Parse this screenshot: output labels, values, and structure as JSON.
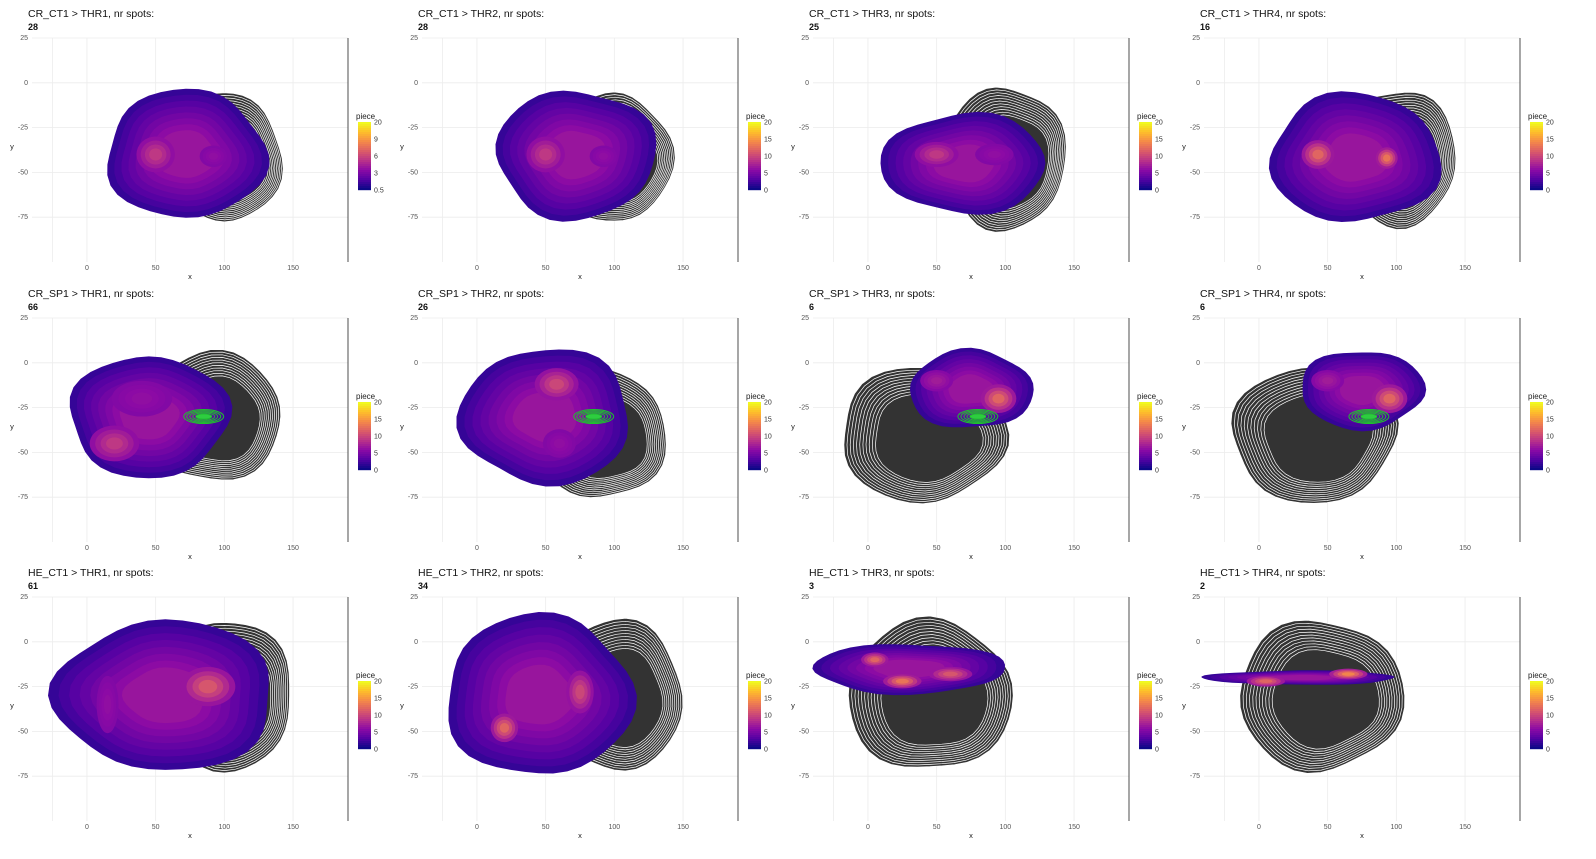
{
  "chart_data": [
    {
      "type": "contour",
      "title": "CR_CT1 > THR1, nr spots:",
      "count": "28",
      "xlabel": "x",
      "ylabel": "y",
      "xticks": [
        "0",
        "50",
        "100",
        "150"
      ],
      "yticks": [
        "25",
        "0",
        "-25",
        "-50",
        "-75"
      ],
      "legend_title": "piece",
      "legend_ticks": [
        "20",
        "9",
        "6",
        "3",
        "0.5"
      ],
      "grey": {
        "cx": 100,
        "cy": -42,
        "rx": 42,
        "ry": 36
      },
      "green": null,
      "density": {
        "cx": 72,
        "cy": -40,
        "rx": 58,
        "ry": 36
      },
      "hot": [
        {
          "x": 50,
          "y": -40,
          "rx": 14,
          "ry": 10,
          "level": 0.45
        },
        {
          "x": 92,
          "y": -41,
          "rx": 10,
          "ry": 6,
          "level": 0.3
        }
      ]
    },
    {
      "type": "contour",
      "title": "CR_CT1 > THR2, nr spots:",
      "count": "28",
      "xlabel": "x",
      "ylabel": "y",
      "xticks": [
        "0",
        "50",
        "100",
        "150"
      ],
      "yticks": [
        "25",
        "0",
        "-25",
        "-50",
        "-75"
      ],
      "legend_title": "piece",
      "legend_ticks": [
        "20",
        "15",
        "10",
        "5",
        "0"
      ],
      "grey": {
        "cx": 100,
        "cy": -42,
        "rx": 42,
        "ry": 36
      },
      "green": null,
      "density": {
        "cx": 72,
        "cy": -40,
        "rx": 58,
        "ry": 36
      },
      "hot": [
        {
          "x": 50,
          "y": -40,
          "rx": 14,
          "ry": 10,
          "level": 0.45
        },
        {
          "x": 92,
          "y": -41,
          "rx": 10,
          "ry": 6,
          "level": 0.3
        }
      ]
    },
    {
      "type": "contour",
      "title": "CR_CT1 > THR3, nr spots:",
      "count": "25",
      "xlabel": "x",
      "ylabel": "y",
      "xticks": [
        "0",
        "50",
        "100",
        "150"
      ],
      "yticks": [
        "25",
        "0",
        "-25",
        "-50",
        "-75"
      ],
      "legend_title": "piece",
      "legend_ticks": [
        "20",
        "15",
        "10",
        "5",
        "0"
      ],
      "grey": {
        "cx": 100,
        "cy": -42,
        "rx": 44,
        "ry": 40
      },
      "green": null,
      "density": {
        "cx": 70,
        "cy": -45,
        "rx": 60,
        "ry": 28
      },
      "hot": [
        {
          "x": 50,
          "y": -40,
          "rx": 16,
          "ry": 7,
          "level": 0.45
        },
        {
          "x": 92,
          "y": -40,
          "rx": 14,
          "ry": 6,
          "level": 0.3
        }
      ]
    },
    {
      "type": "contour",
      "title": "CR_CT1 > THR4, nr spots:",
      "count": "16",
      "xlabel": "x",
      "ylabel": "y",
      "xticks": [
        "0",
        "50",
        "100",
        "150"
      ],
      "yticks": [
        "25",
        "0",
        "-25",
        "-50",
        "-75"
      ],
      "legend_title": "piece",
      "legend_ticks": [
        "20",
        "15",
        "10",
        "5",
        "0"
      ],
      "grey": {
        "cx": 100,
        "cy": -42,
        "rx": 44,
        "ry": 38
      },
      "green": null,
      "density": {
        "cx": 70,
        "cy": -42,
        "rx": 62,
        "ry": 36
      },
      "hot": [
        {
          "x": 43,
          "y": -40,
          "rx": 12,
          "ry": 8,
          "level": 0.6
        },
        {
          "x": 93,
          "y": -42,
          "rx": 8,
          "ry": 6,
          "level": 0.65
        }
      ]
    },
    {
      "type": "contour",
      "title": "CR_SP1 > THR1, nr spots:",
      "count": "66",
      "xlabel": "x",
      "ylabel": "y",
      "xticks": [
        "0",
        "50",
        "100",
        "150"
      ],
      "yticks": [
        "25",
        "0",
        "-25",
        "-50",
        "-75"
      ],
      "legend_title": "piece",
      "legend_ticks": [
        "20",
        "15",
        "10",
        "5",
        "0"
      ],
      "grey": {
        "cx": 90,
        "cy": -30,
        "rx": 52,
        "ry": 36
      },
      "green": {
        "x": 85,
        "y": -30
      },
      "density": {
        "cx": 45,
        "cy": -30,
        "rx": 58,
        "ry": 34
      },
      "hot": [
        {
          "x": 20,
          "y": -45,
          "rx": 18,
          "ry": 10,
          "level": 0.45
        },
        {
          "x": 40,
          "y": -20,
          "rx": 22,
          "ry": 10,
          "level": 0.3
        }
      ]
    },
    {
      "type": "contour",
      "title": "CR_SP1 > THR2, nr spots:",
      "count": "26",
      "xlabel": "x",
      "ylabel": "y",
      "xticks": [
        "0",
        "50",
        "100",
        "150"
      ],
      "yticks": [
        "25",
        "0",
        "-25",
        "-50",
        "-75"
      ],
      "legend_title": "piece",
      "legend_ticks": [
        "20",
        "15",
        "10",
        "5",
        "0"
      ],
      "grey": {
        "cx": 90,
        "cy": -40,
        "rx": 48,
        "ry": 36
      },
      "green": {
        "x": 85,
        "y": -30
      },
      "density": {
        "cx": 50,
        "cy": -30,
        "rx": 62,
        "ry": 38
      },
      "hot": [
        {
          "x": 58,
          "y": -12,
          "rx": 16,
          "ry": 9,
          "level": 0.5
        },
        {
          "x": 60,
          "y": -45,
          "rx": 12,
          "ry": 8,
          "level": 0.3
        }
      ]
    },
    {
      "type": "contour",
      "title": "CR_SP1 > THR3, nr spots:",
      "count": "6",
      "xlabel": "x",
      "ylabel": "y",
      "xticks": [
        "0",
        "50",
        "100",
        "150"
      ],
      "yticks": [
        "25",
        "0",
        "-25",
        "-50",
        "-75"
      ],
      "legend_title": "piece",
      "legend_ticks": [
        "20",
        "15",
        "10",
        "5",
        "0"
      ],
      "grey": {
        "cx": 40,
        "cy": -40,
        "rx": 60,
        "ry": 38
      },
      "green": {
        "x": 80,
        "y": -30
      },
      "density": {
        "cx": 75,
        "cy": -15,
        "rx": 45,
        "ry": 22
      },
      "hot": [
        {
          "x": 95,
          "y": -20,
          "rx": 13,
          "ry": 8,
          "level": 0.6
        },
        {
          "x": 50,
          "y": -10,
          "rx": 12,
          "ry": 6,
          "level": 0.35
        }
      ]
    },
    {
      "type": "contour",
      "title": "CR_SP1 > THR4, nr spots:",
      "count": "6",
      "xlabel": "x",
      "ylabel": "y",
      "xticks": [
        "0",
        "50",
        "100",
        "150"
      ],
      "yticks": [
        "25",
        "0",
        "-25",
        "-50",
        "-75"
      ],
      "legend_title": "piece",
      "legend_ticks": [
        "20",
        "15",
        "10",
        "5",
        "0"
      ],
      "grey": {
        "cx": 40,
        "cy": -40,
        "rx": 60,
        "ry": 38
      },
      "green": {
        "x": 80,
        "y": -30
      },
      "density": {
        "cx": 75,
        "cy": -15,
        "rx": 45,
        "ry": 22
      },
      "hot": [
        {
          "x": 95,
          "y": -20,
          "rx": 13,
          "ry": 8,
          "level": 0.6
        },
        {
          "x": 50,
          "y": -10,
          "rx": 12,
          "ry": 6,
          "level": 0.35
        }
      ]
    },
    {
      "type": "contour",
      "title": "HE_CT1 > THR1, nr spots:",
      "count": "61",
      "xlabel": "x",
      "ylabel": "y",
      "xticks": [
        "0",
        "50",
        "100",
        "150"
      ],
      "yticks": [
        "25",
        "0",
        "-25",
        "-50",
        "-75"
      ],
      "legend_title": "piece",
      "legend_ticks": [
        "20",
        "15",
        "10",
        "5",
        "0"
      ],
      "grey": {
        "cx": 100,
        "cy": -30,
        "rx": 50,
        "ry": 42
      },
      "green": null,
      "density": {
        "cx": 57,
        "cy": -30,
        "rx": 80,
        "ry": 42
      },
      "hot": [
        {
          "x": 88,
          "y": -25,
          "rx": 20,
          "ry": 11,
          "level": 0.55
        },
        {
          "x": 15,
          "y": -35,
          "rx": 8,
          "ry": 16,
          "level": 0.3
        }
      ]
    },
    {
      "type": "contour",
      "title": "HE_CT1 > THR2, nr spots:",
      "count": "34",
      "xlabel": "x",
      "ylabel": "y",
      "xticks": [
        "0",
        "50",
        "100",
        "150"
      ],
      "yticks": [
        "25",
        "0",
        "-25",
        "-50",
        "-75"
      ],
      "legend_title": "piece",
      "legend_ticks": [
        "20",
        "15",
        "10",
        "5",
        "0"
      ],
      "grey": {
        "cx": 100,
        "cy": -30,
        "rx": 50,
        "ry": 42
      },
      "green": null,
      "density": {
        "cx": 45,
        "cy": -30,
        "rx": 68,
        "ry": 45
      },
      "hot": [
        {
          "x": 20,
          "y": -48,
          "rx": 10,
          "ry": 8,
          "level": 0.6
        },
        {
          "x": 75,
          "y": -28,
          "rx": 10,
          "ry": 12,
          "level": 0.5
        }
      ]
    },
    {
      "type": "contour",
      "title": "HE_CT1 > THR3, nr spots:",
      "count": "3",
      "xlabel": "x",
      "ylabel": "y",
      "xticks": [
        "0",
        "50",
        "100",
        "150"
      ],
      "yticks": [
        "25",
        "0",
        "-25",
        "-50",
        "-75"
      ],
      "legend_title": "piece",
      "legend_ticks": [
        "20",
        "15",
        "10",
        "5",
        "0"
      ],
      "grey": {
        "cx": 45,
        "cy": -30,
        "rx": 60,
        "ry": 42
      },
      "green": null,
      "density": {
        "cx": 30,
        "cy": -15,
        "rx": 70,
        "ry": 14
      },
      "hot": [
        {
          "x": 5,
          "y": -10,
          "rx": 10,
          "ry": 4,
          "level": 0.6
        },
        {
          "x": 25,
          "y": -22,
          "rx": 14,
          "ry": 4,
          "level": 0.65
        },
        {
          "x": 60,
          "y": -18,
          "rx": 16,
          "ry": 4,
          "level": 0.55
        }
      ]
    },
    {
      "type": "contour",
      "title": "HE_CT1 > THR4, nr spots:",
      "count": "2",
      "xlabel": "x",
      "ylabel": "y",
      "xticks": [
        "0",
        "50",
        "100",
        "150"
      ],
      "yticks": [
        "25",
        "0",
        "-25",
        "-50",
        "-75"
      ],
      "legend_title": "piece",
      "legend_ticks": [
        "20",
        "15",
        "10",
        "5",
        "0"
      ],
      "grey": {
        "cx": 45,
        "cy": -30,
        "rx": 60,
        "ry": 42
      },
      "green": null,
      "density": {
        "cx": 30,
        "cy": -20,
        "rx": 70,
        "ry": 4
      },
      "hot": [
        {
          "x": 65,
          "y": -18,
          "rx": 14,
          "ry": 3,
          "level": 0.7
        },
        {
          "x": 5,
          "y": -22,
          "rx": 14,
          "ry": 3,
          "level": 0.6
        }
      ]
    }
  ]
}
